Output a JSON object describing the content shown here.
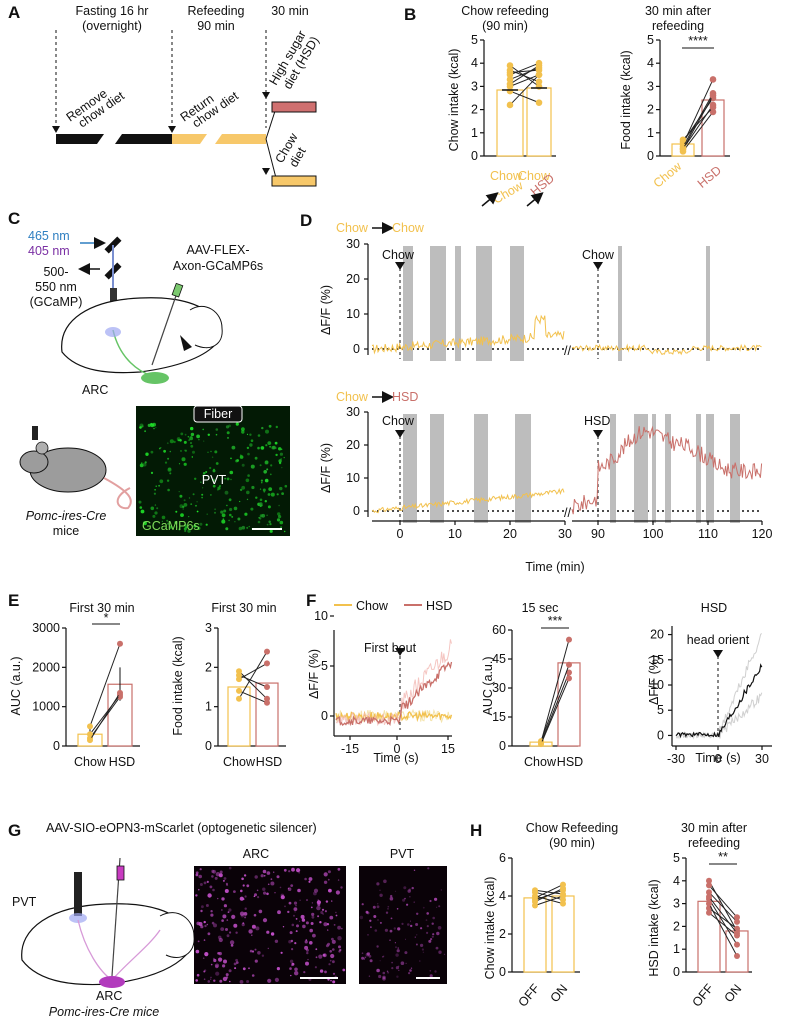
{
  "panels": {
    "A": "A",
    "B": "B",
    "C": "C",
    "D": "D",
    "E": "E",
    "F": "F",
    "G": "G",
    "H": "H"
  },
  "A": {
    "phase1_l1": "Fasting 16 hr",
    "phase1_l2": "(overnight)",
    "phase2_l1": "Refeeding",
    "phase2_l2": "90 min",
    "phase3": "30 min",
    "remove_l1": "Remove",
    "remove_l2": "chow diet",
    "return_l1": "Return",
    "return_l2": "chow diet",
    "hsd_l1": "High sugar",
    "hsd_l2": "diet (HSD)",
    "chow_l1": "Chow",
    "chow_l2": "diet"
  },
  "B": {
    "title1_l1": "Chow refeeding",
    "title1_l2": "(90 min)",
    "ylabel1": "Chow intake (kcal)",
    "title2_l1": "30 min after",
    "title2_l2": "refeeding",
    "ylabel2": "Food intake (kcal)",
    "yticks": [
      "0",
      "1",
      "2",
      "3",
      "4",
      "5"
    ],
    "x1_top": "Chow",
    "x1_bot": "Chow",
    "x2_top": "Chow",
    "x2_bot": "HSD",
    "x3": "Chow",
    "x4": "HSD",
    "sig": "****"
  },
  "C": {
    "nm465": "465 nm",
    "nm405": "405 nm",
    "em_l1": "500-",
    "em_l2": "550 nm",
    "em_l3": "(GCaMP)",
    "virus_l1": "AAV-FLEX-",
    "virus_l2": "Axon-GCaMP6s",
    "arc": "ARC",
    "fiber": "Fiber",
    "pvt": "PVT",
    "gcamp": "GCaMP6s",
    "mice_l1": "Pomc-ires-Cre",
    "mice_l2": "mice"
  },
  "D": {
    "cond1_a": "Chow",
    "cond1_b": "Chow",
    "cond2_a": "Chow",
    "cond2_b": "HSD",
    "ylabel": "ΔF/F (%)",
    "yticks": [
      "0",
      "10",
      "20",
      "30"
    ],
    "ev_chow1": "Chow",
    "ev_chow2": "Chow",
    "ev_chow3": "Chow",
    "ev_hsd": "HSD",
    "xticks_left": [
      "0",
      "10",
      "20",
      "30"
    ],
    "xticks_right": [
      "90",
      "100",
      "110",
      "120"
    ],
    "xlabel": "Time (min)"
  },
  "E": {
    "title1": "First 30 min",
    "title2": "First 30 min",
    "ylabel1": "AUC (a.u.)",
    "ylabel2": "Food intake (kcal)",
    "yticks1": [
      "0",
      "1000",
      "2000",
      "3000"
    ],
    "yticks2": [
      "0",
      "1",
      "2",
      "3"
    ],
    "x_chow": "Chow",
    "x_hsd": "HSD",
    "sig": "*"
  },
  "F": {
    "legend_chow": "Chow",
    "legend_hsd": "HSD",
    "first_bout": "First bout",
    "ylabel1": "ΔF/F (%)",
    "yticks1": [
      "0",
      "5",
      "10"
    ],
    "xticks1": [
      "-15",
      "0",
      "15"
    ],
    "xlabel": "Time (s)",
    "title2": "15 sec",
    "ylabel2": "AUC (a.u.)",
    "yticks2": [
      "0",
      "15",
      "30",
      "45",
      "60"
    ],
    "x_chow": "Chow",
    "x_hsd": "HSD",
    "sig": "***",
    "title3": "HSD",
    "head_orient": "head orient",
    "yticks3": [
      "0",
      "5",
      "10",
      "15",
      "20"
    ],
    "xticks3": [
      "-30",
      "0",
      "30"
    ]
  },
  "G": {
    "title": "AAV-SIO-eOPN3-mScarlet (optogenetic silencer)",
    "pvt": "PVT",
    "arc": "ARC",
    "mice": "Pomc-ires-Cre mice",
    "img_arc": "ARC",
    "img_pvt": "PVT"
  },
  "H": {
    "title1_l1": "Chow Refeeding",
    "title1_l2": "(90 min)",
    "ylabel1": "Chow intake (kcal)",
    "yticks1": [
      "0",
      "2",
      "4",
      "6"
    ],
    "title2_l1": "30 min after",
    "title2_l2": "refeeding",
    "ylabel2": "HSD intake (kcal)",
    "yticks2": [
      "0",
      "1",
      "2",
      "3",
      "4",
      "5"
    ],
    "x_off": "OFF",
    "x_on": "ON",
    "sig": "**"
  },
  "colors": {
    "chow": "#f2c14e",
    "hsd": "#c9706a",
    "gcamp": "#3fbf3f",
    "silencer": "#b23bbd",
    "bar": "#c8c8c8"
  }
}
